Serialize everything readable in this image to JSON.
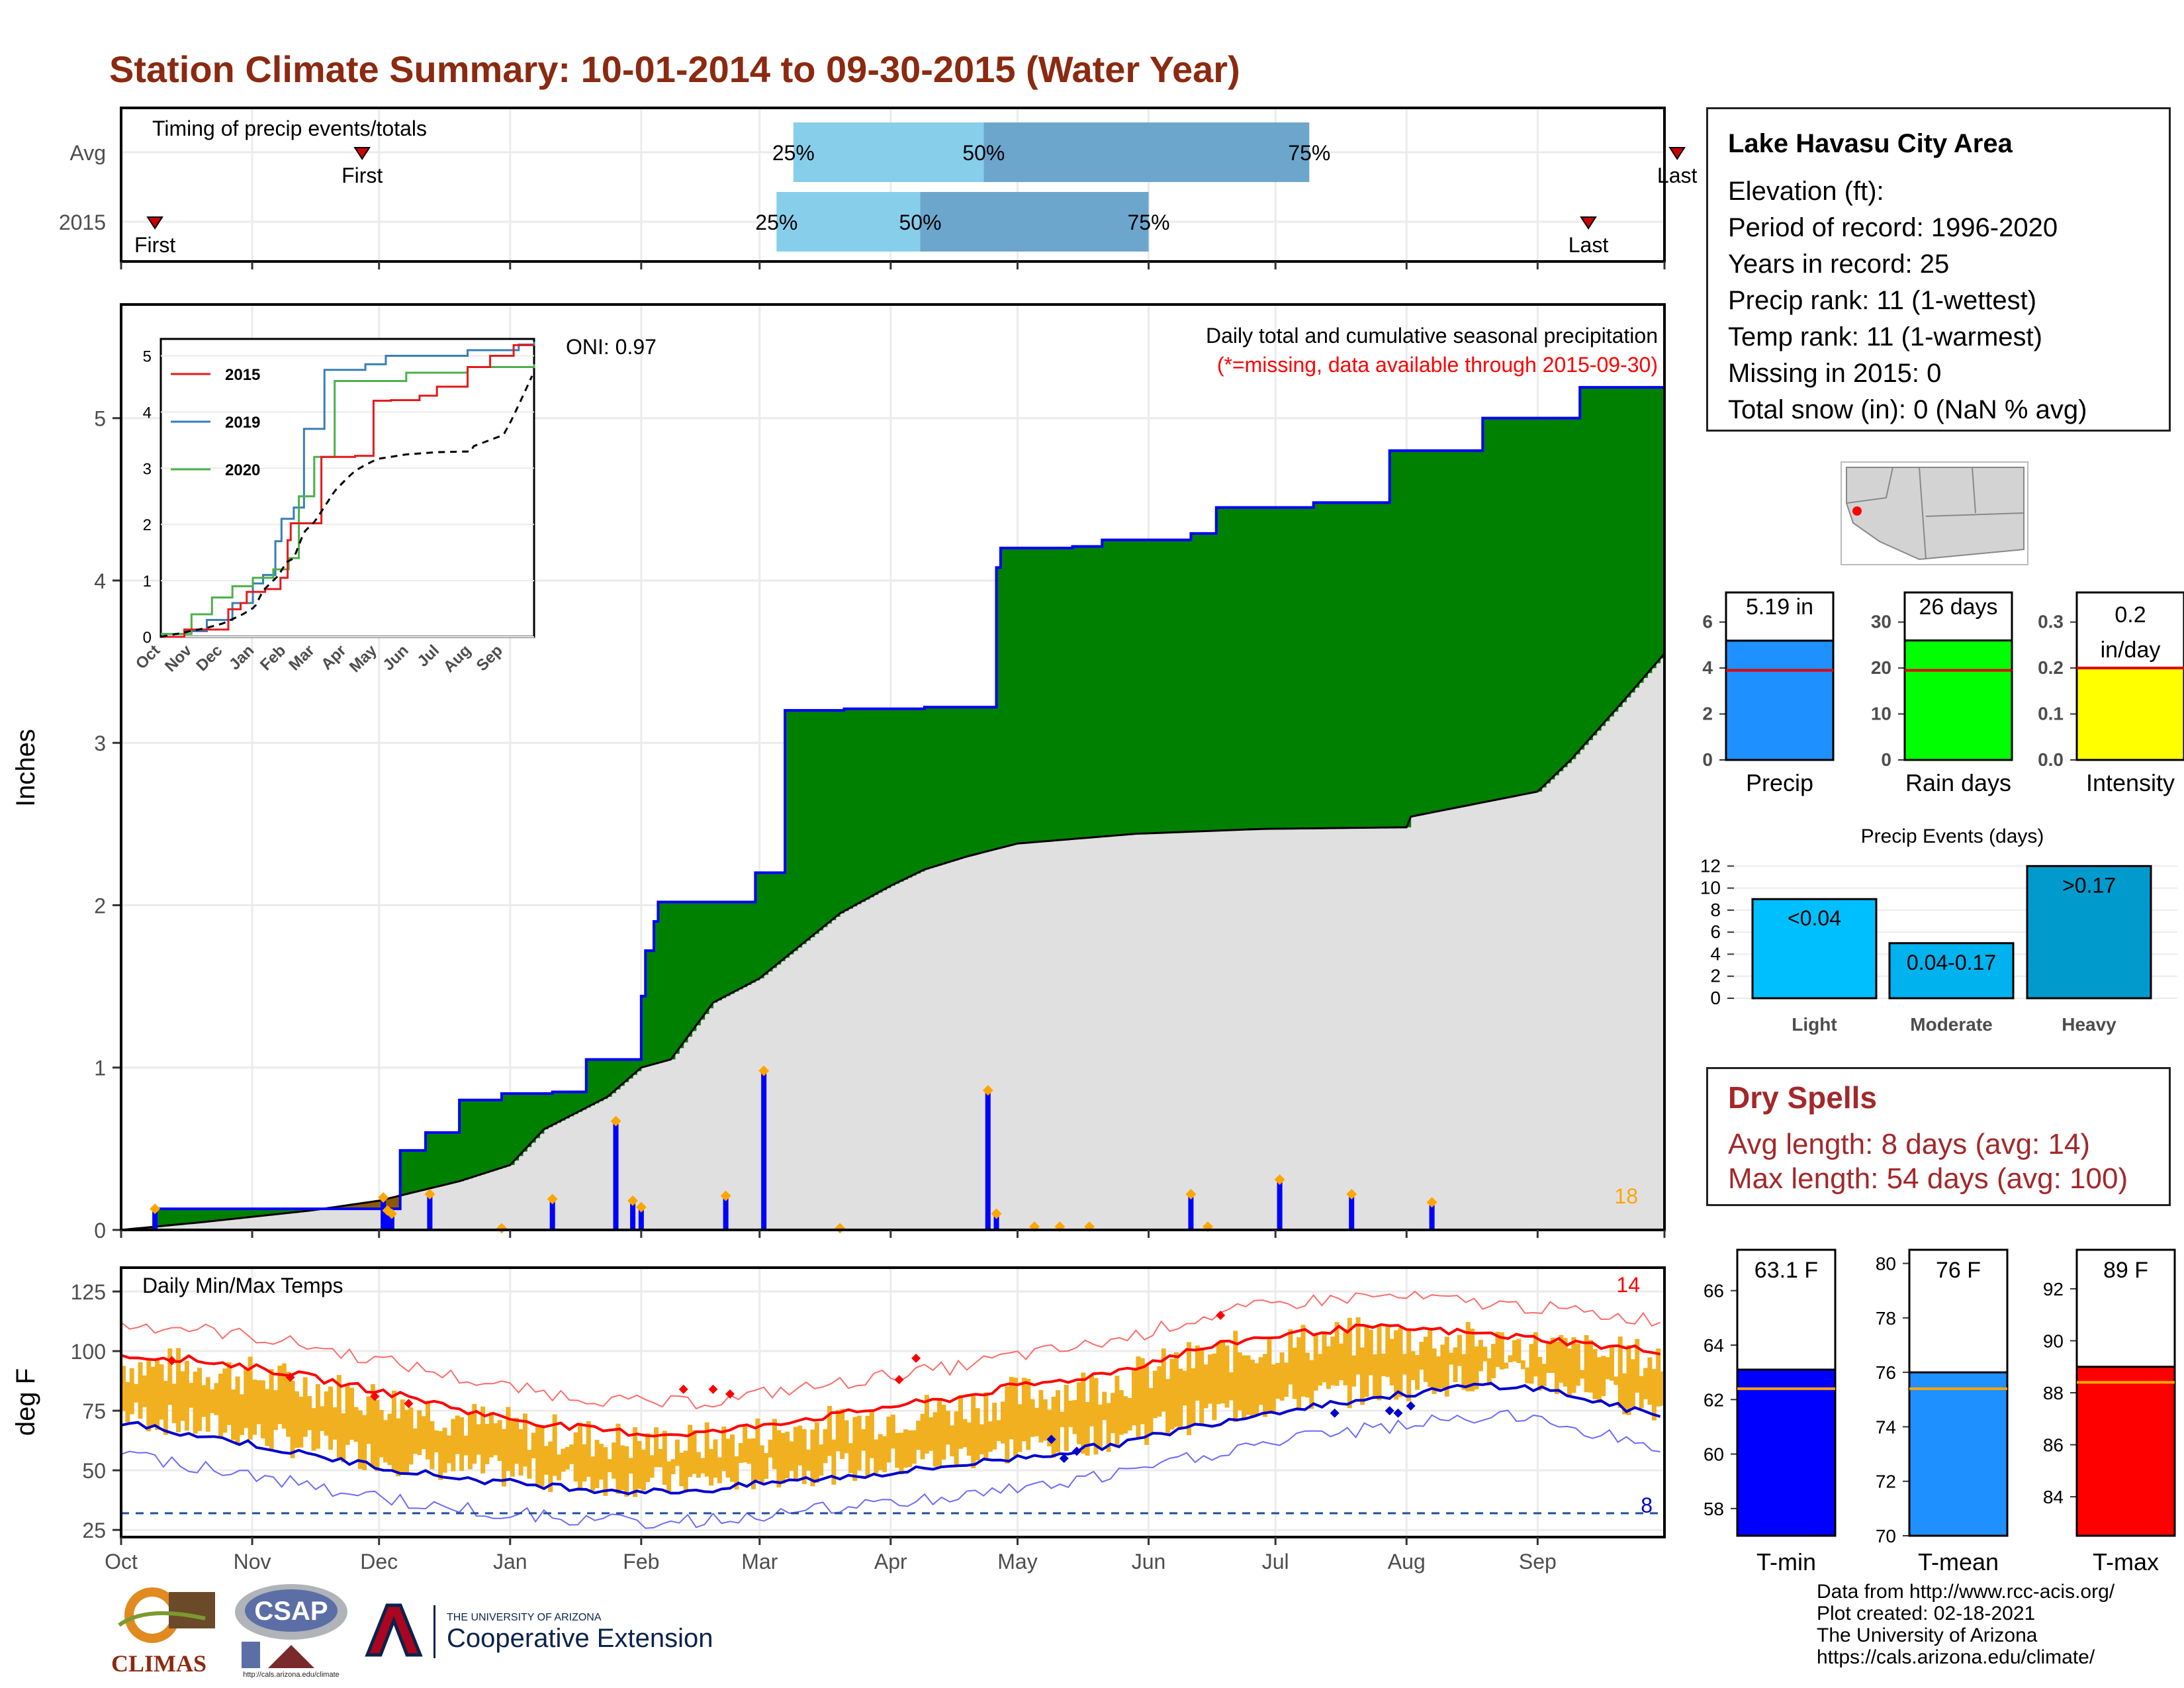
{
  "title": "Station Climate Summary: 10-01-2014 to 09-30-2015 (Water Year)",
  "months": [
    "Oct",
    "Nov",
    "Dec",
    "Jan",
    "Feb",
    "Mar",
    "Apr",
    "May",
    "Jun",
    "Jul",
    "Aug",
    "Sep"
  ],
  "timing": {
    "title": "Timing of precip events/totals",
    "rows": [
      {
        "label": "Avg",
        "first": 57,
        "q25": 159,
        "q50": 204,
        "q75": 281,
        "last": 368
      },
      {
        "label": "2015",
        "first": 8,
        "q25": 155,
        "q50": 189,
        "q75": 243,
        "last": 347
      }
    ],
    "labels": {
      "first": "First",
      "last": "Last",
      "q25": "25%",
      "q50": "50%",
      "q75": "75%"
    }
  },
  "precip": {
    "title": "Daily total and cumulative seasonal precipitation",
    "missing_note": "(*=missing, data available through 2015-09-30)",
    "oni": "ONI: 0.97",
    "ylabel": "Inches",
    "yticks": [
      0,
      1,
      2,
      3,
      4,
      5
    ],
    "count_label": "18"
  },
  "inset": {
    "xticks": [
      "Oct",
      "Nov",
      "Dec",
      "Jan",
      "Feb",
      "Mar",
      "Apr",
      "May",
      "Jun",
      "Jul",
      "Aug",
      "Sep"
    ],
    "yticks": [
      0,
      1,
      2,
      3,
      4,
      5
    ],
    "legend": [
      "2015",
      "2019",
      "2020"
    ],
    "colors": [
      "#e41a1c",
      "#377eb8",
      "#4daf4a"
    ]
  },
  "temps": {
    "title": "Daily Min/Max Temps",
    "ylabel": "deg F",
    "yticks": [
      25,
      50,
      75,
      100,
      125
    ],
    "max_count": "14",
    "min_count": "8"
  },
  "station": {
    "name": "Lake Havasu City Area",
    "lines": [
      "Elevation (ft):",
      "Period of record: 1996-2020",
      "Years in record: 25",
      "Precip rank: 11 (1-wettest)",
      "Temp rank: 11 (1-warmest)",
      "Missing in 2015: 0",
      "Total snow (in): 0 (NaN % avg)"
    ]
  },
  "summary_bars": [
    {
      "label": "Precip",
      "value_text": "5.19 in",
      "value": 5.19,
      "avg": 3.9,
      "ymax": 7,
      "yticks": [
        0,
        2,
        4,
        6
      ],
      "color": "#1e90ff"
    },
    {
      "label": "Rain days",
      "value_text": "26 days",
      "value": 26,
      "avg": 19.5,
      "ymax": 35,
      "yticks": [
        0,
        10,
        20,
        30
      ],
      "color": "#00ff00"
    },
    {
      "label": "Intensity",
      "value_text": "0.2 in/day",
      "value": 0.2,
      "avg": 0.2,
      "ymax": 0.35,
      "yticks": [
        0.0,
        0.1,
        0.2,
        0.3
      ],
      "color": "#ffff00"
    }
  ],
  "events": {
    "title": "Precip Events (days)",
    "yticks": [
      0,
      2,
      4,
      6,
      8,
      10,
      12
    ],
    "bars": [
      {
        "category": "Light",
        "label": "<0.04",
        "value": 9,
        "color": "#00bfff"
      },
      {
        "category": "Moderate",
        "label": "0.04-0.17",
        "value": 5,
        "color": "#00b2ee"
      },
      {
        "category": "Heavy",
        "label": ">0.17",
        "value": 12,
        "color": "#009acd"
      }
    ]
  },
  "dry_spells": {
    "title": "Dry Spells",
    "avg": "Avg length: 8 days (avg: 14)",
    "max": "Max length: 54 days (avg: 100)"
  },
  "temp_bars": [
    {
      "label": "T-min",
      "value_text": "63.1 F",
      "value": 63.1,
      "avg": 62.4,
      "ymin": 57,
      "ymax": 67.5,
      "yticks": [
        58,
        60,
        62,
        64,
        66
      ],
      "color": "#0000ff"
    },
    {
      "label": "T-mean",
      "value_text": "76 F",
      "value": 76.0,
      "avg": 75.4,
      "ymin": 70,
      "ymax": 80.5,
      "yticks": [
        70,
        72,
        74,
        76,
        78,
        80
      ],
      "color": "#1e90ff"
    },
    {
      "label": "T-max",
      "value_text": "89 F",
      "value": 89.0,
      "avg": 88.4,
      "ymin": 82.5,
      "ymax": 93.5,
      "yticks": [
        84,
        86,
        88,
        90,
        92
      ],
      "color": "#ff0000"
    }
  ],
  "logos": {
    "climas": "CLIMAS",
    "csap": "CSAP",
    "csap_url": "http://cals.arizona.edu/climate",
    "ua_small": "THE UNIVERSITY OF ARIZONA",
    "ua_big": "Cooperative Extension"
  },
  "footer": [
    "Data from http://www.rcc-acis.org/",
    "Plot created: 02-18-2021",
    "The University of Arizona",
    "https://cals.arizona.edu/climate/"
  ],
  "chart_data": [
    {
      "type": "line",
      "title": "Daily total and cumulative seasonal precipitation",
      "ylabel": "Inches",
      "ylim": [
        0,
        5.6
      ],
      "x": [
        "Oct",
        "Nov",
        "Dec",
        "Jan",
        "Feb",
        "Mar",
        "Apr",
        "May",
        "Jun",
        "Jul",
        "Aug",
        "Sep"
      ],
      "series": [
        {
          "name": "2015",
          "values": [
            0.13,
            0.13,
            0.58,
            0.85,
            2.02,
            3.2,
            3.21,
            4.3,
            4.45,
            5.0,
            5.19,
            5.19
          ]
        }
      ]
    },
    {
      "type": "bar",
      "title": "Precip Events (days)",
      "categories": [
        "Light",
        "Moderate",
        "Heavy"
      ],
      "values": [
        9,
        5,
        12
      ],
      "ylim": [
        0,
        12
      ]
    },
    {
      "type": "bar",
      "categories": [
        "Precip",
        "Rain days",
        "Intensity"
      ],
      "values": [
        5.19,
        26,
        0.2
      ]
    },
    {
      "type": "bar",
      "categories": [
        "T-min",
        "T-mean",
        "T-max"
      ],
      "values": [
        63.1,
        76,
        89
      ]
    },
    {
      "type": "line",
      "title": "Daily Min/Max Temps",
      "ylabel": "deg F",
      "ylim": [
        25,
        135
      ],
      "x": [
        "Oct",
        "Nov",
        "Dec",
        "Jan",
        "Feb",
        "Mar",
        "Apr",
        "May",
        "Jun",
        "Jul",
        "Aug",
        "Sep"
      ],
      "series": [
        {
          "values": [
            96,
            82,
            68,
            62,
            67,
            73,
            80,
            92,
            104,
            108,
            106,
            100
          ]
        },
        {
          "values": [
            70,
            58,
            48,
            42,
            47,
            52,
            58,
            68,
            78,
            84,
            86,
            77
          ]
        }
      ]
    }
  ]
}
